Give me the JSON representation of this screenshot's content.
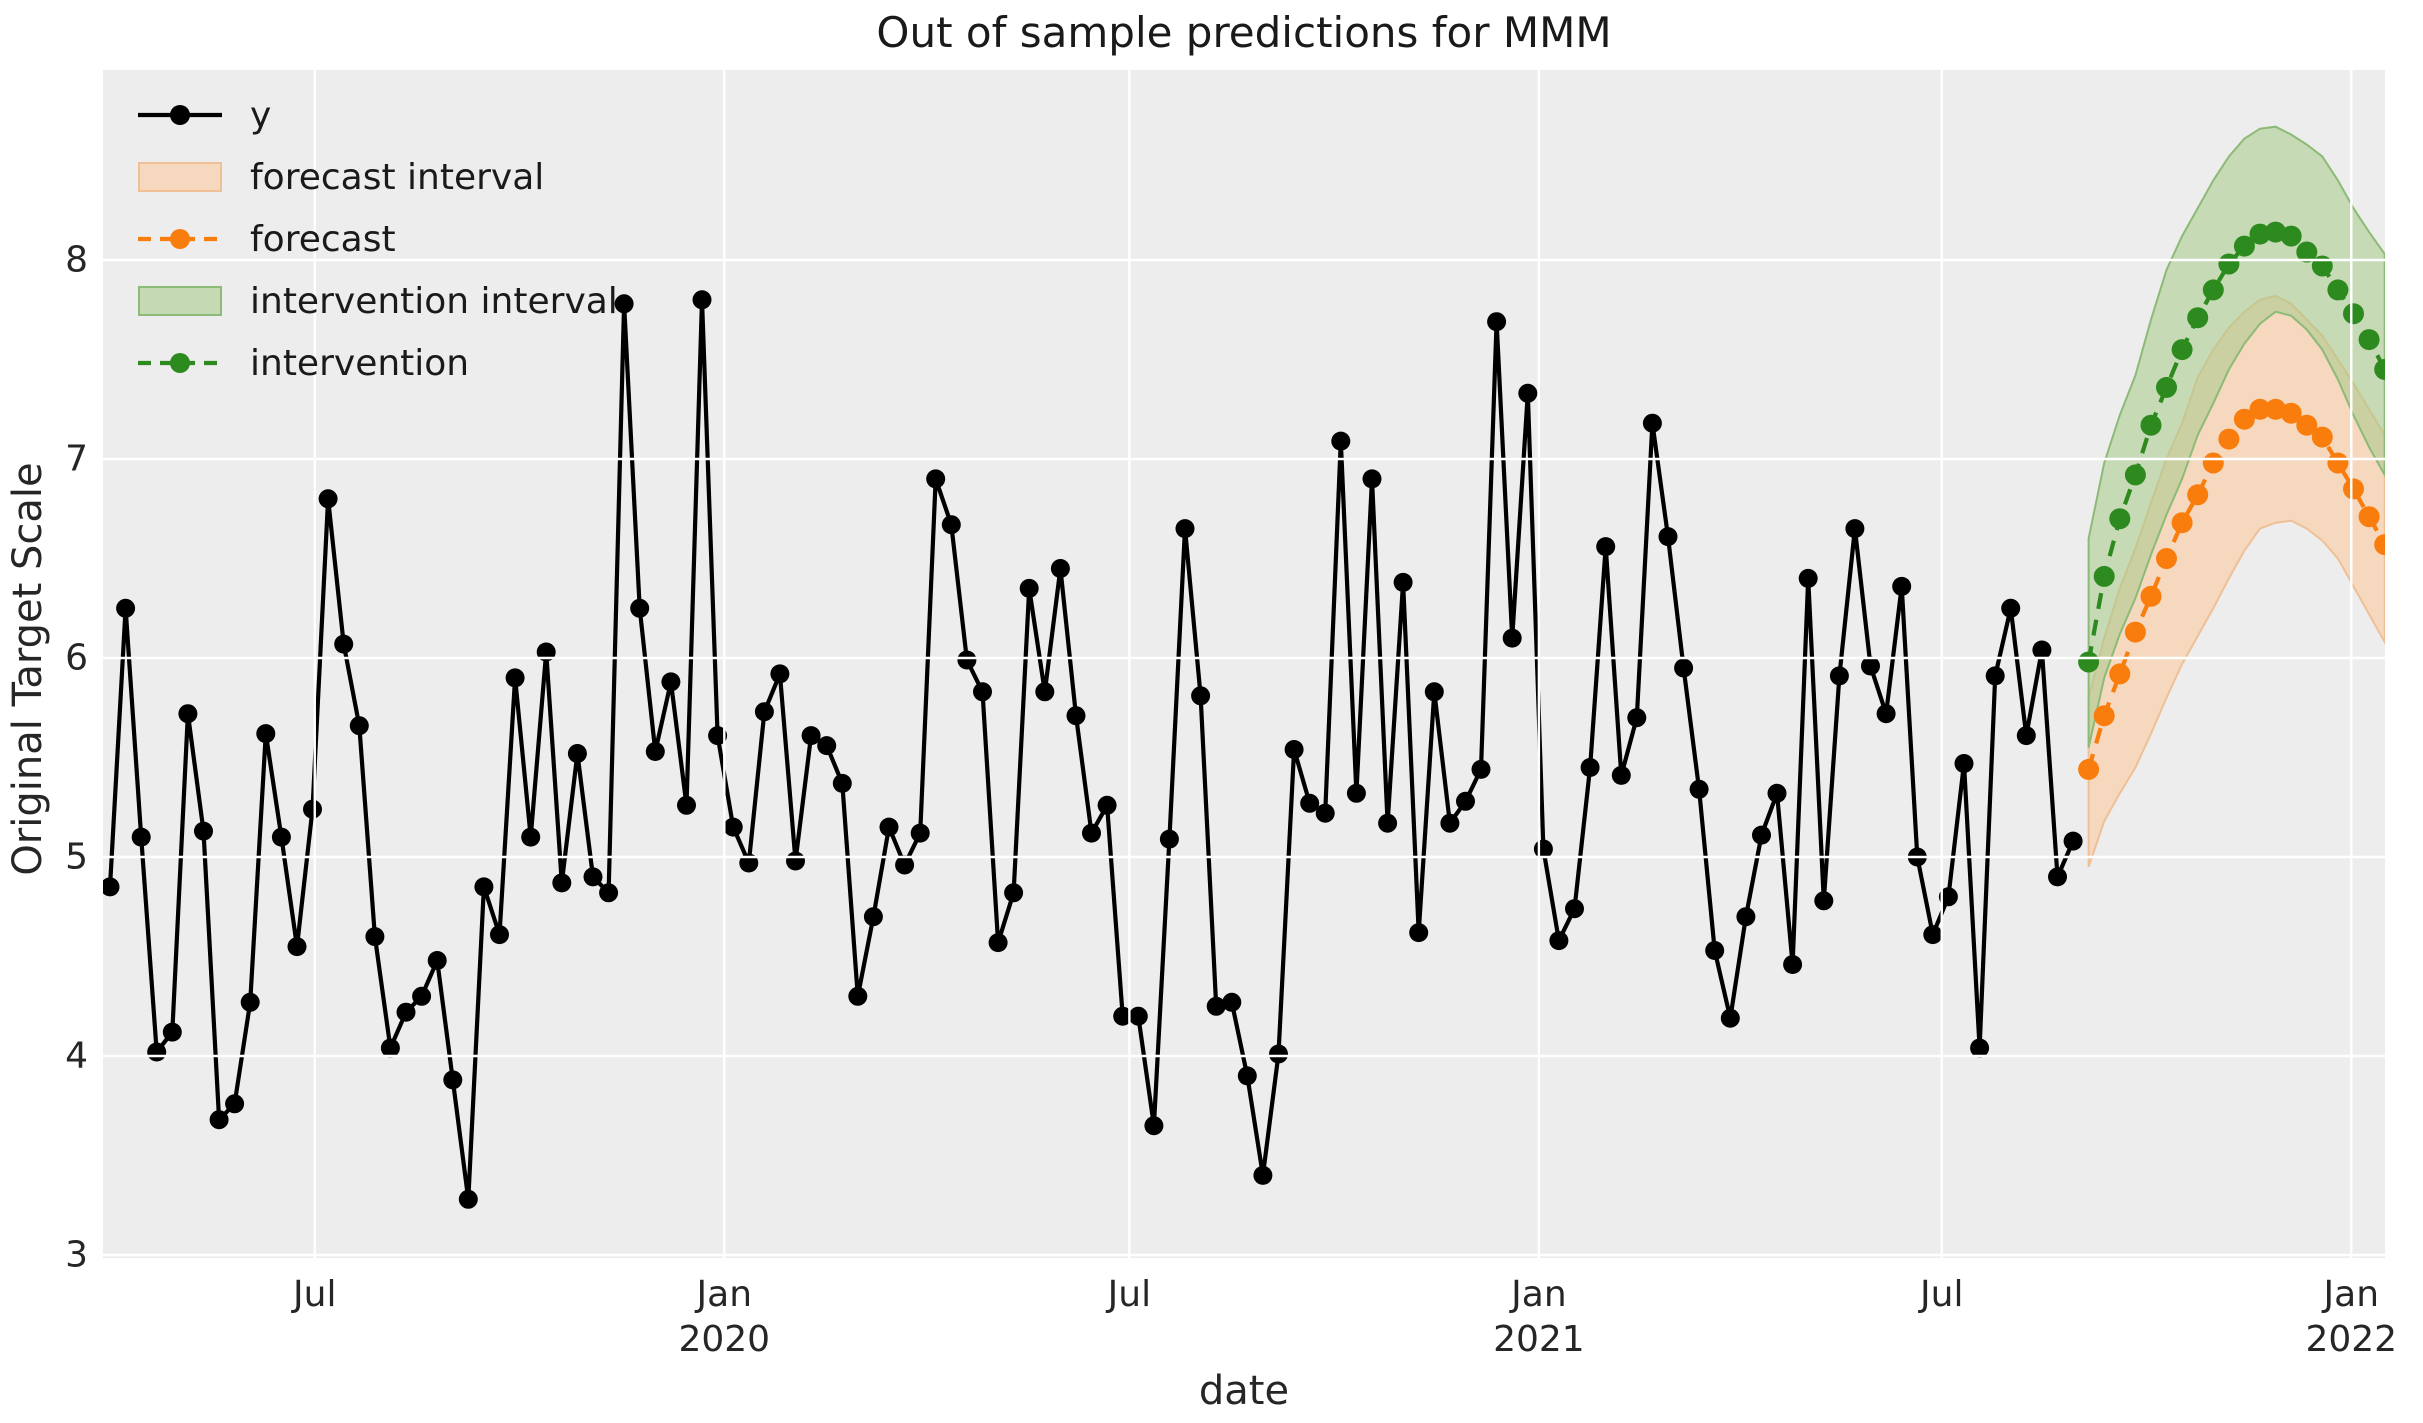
{
  "title": "Out of sample predictions for MMM",
  "axes": {
    "xlabel": "date",
    "ylabel": "Original Target Scale",
    "y_ticks": [
      3,
      4,
      5,
      6,
      7,
      8
    ],
    "x_ticks": [
      {
        "label": "Jul",
        "year": "",
        "date": "2019-07-01"
      },
      {
        "label": "Jan",
        "year": "2020",
        "date": "2020-01-01"
      },
      {
        "label": "Jul",
        "year": "",
        "date": "2020-07-01"
      },
      {
        "label": "Jan",
        "year": "2021",
        "date": "2021-01-01"
      },
      {
        "label": "Jul",
        "year": "",
        "date": "2021-07-01"
      },
      {
        "label": "Jan",
        "year": "2022",
        "date": "2022-01-01"
      }
    ]
  },
  "colors": {
    "y_series": "#000000",
    "forecast": "#f97d0d",
    "forecast_fill": "#f5d8be",
    "forecast_edge": "#efc096",
    "intervention": "#2d8a1e",
    "intervention_fill": "#a6cb88",
    "intervention_edge": "#8cba77",
    "plot_bg": "#ededed",
    "grid": "#ffffff",
    "text": "#262626"
  },
  "legend": [
    {
      "label": "y",
      "type": "line-dot",
      "color": "#000000"
    },
    {
      "label": "forecast interval",
      "type": "patch",
      "color": "#f5d8be",
      "edge": "#efc096"
    },
    {
      "label": "forecast",
      "type": "dash-dot",
      "color": "#f97d0d"
    },
    {
      "label": "intervention interval",
      "type": "patch",
      "color": "#c5d9b5",
      "edge": "#8cba77"
    },
    {
      "label": "intervention",
      "type": "dash-dot",
      "color": "#2d8a1e"
    }
  ],
  "chart_data": {
    "type": "line",
    "title": "Out of sample predictions for MMM",
    "xlabel": "date",
    "ylabel": "Original Target Scale",
    "ylim": [
      2.98,
      8.95
    ],
    "grid": true,
    "legend_position": "upper left",
    "frequency": "weekly",
    "series": [
      {
        "name": "y",
        "style": "solid line with circle markers",
        "start_date": "2019-03-31",
        "values": [
          4.85,
          6.25,
          5.1,
          4.02,
          4.12,
          5.72,
          5.13,
          3.68,
          3.76,
          4.27,
          5.62,
          5.1,
          4.55,
          5.24,
          6.8,
          6.07,
          5.66,
          4.6,
          4.04,
          4.22,
          4.3,
          4.48,
          3.88,
          3.28,
          4.85,
          4.61,
          5.9,
          5.1,
          6.03,
          4.87,
          5.52,
          4.9,
          4.82,
          7.78,
          6.25,
          5.53,
          5.88,
          5.26,
          7.8,
          5.61,
          5.15,
          4.97,
          5.73,
          5.92,
          4.98,
          5.61,
          5.56,
          5.37,
          4.3,
          4.7,
          5.15,
          4.96,
          5.12,
          6.9,
          6.67,
          5.99,
          5.83,
          4.57,
          4.82,
          6.35,
          5.83,
          6.45,
          5.71,
          5.12,
          5.26,
          4.2,
          4.2,
          3.65,
          5.09,
          6.65,
          5.81,
          4.25,
          4.27,
          3.9,
          3.4,
          4.01,
          5.54,
          5.27,
          5.22,
          7.09,
          5.32,
          6.9,
          5.17,
          6.38,
          4.62,
          5.83,
          5.17,
          5.28,
          5.44,
          7.69,
          6.1,
          7.33,
          5.04,
          4.58,
          4.74,
          5.45,
          6.56,
          5.41,
          5.7,
          7.18,
          6.61,
          5.95,
          5.34,
          4.53,
          4.19,
          4.7,
          5.11,
          5.32,
          4.46,
          6.4,
          4.78,
          5.91,
          6.65,
          5.96,
          5.72,
          6.36,
          5.0,
          4.61,
          4.8,
          5.47,
          4.04,
          5.91,
          6.25,
          5.61,
          6.04,
          4.9,
          5.08
        ]
      },
      {
        "name": "forecast",
        "style": "dashed line with circle markers",
        "start_date": "2021-09-05",
        "values": [
          5.44,
          5.71,
          5.92,
          6.13,
          6.31,
          6.5,
          6.68,
          6.82,
          6.98,
          7.1,
          7.2,
          7.25,
          7.25,
          7.23,
          7.17,
          7.11,
          6.98,
          6.85,
          6.71,
          6.57
        ]
      },
      {
        "name": "forecast interval",
        "style": "filled band",
        "start_date": "2021-09-05",
        "upper": [
          5.8,
          6.1,
          6.35,
          6.55,
          6.78,
          7.0,
          7.18,
          7.41,
          7.55,
          7.66,
          7.74,
          7.8,
          7.82,
          7.78,
          7.7,
          7.62,
          7.5,
          7.38,
          7.25,
          7.12
        ],
        "lower": [
          4.95,
          5.18,
          5.32,
          5.45,
          5.62,
          5.8,
          5.97,
          6.11,
          6.25,
          6.4,
          6.54,
          6.65,
          6.68,
          6.69,
          6.65,
          6.59,
          6.5,
          6.36,
          6.22,
          6.08
        ]
      },
      {
        "name": "intervention",
        "style": "dashed line with circle markers",
        "start_date": "2021-09-05",
        "values": [
          5.98,
          6.41,
          6.7,
          6.92,
          7.17,
          7.36,
          7.55,
          7.71,
          7.85,
          7.98,
          8.07,
          8.13,
          8.14,
          8.12,
          8.04,
          7.97,
          7.85,
          7.73,
          7.6,
          7.45
        ]
      },
      {
        "name": "intervention interval",
        "style": "filled band",
        "start_date": "2021-09-05",
        "upper": [
          6.6,
          6.98,
          7.22,
          7.42,
          7.7,
          7.95,
          8.12,
          8.26,
          8.4,
          8.52,
          8.61,
          8.66,
          8.67,
          8.63,
          8.58,
          8.52,
          8.4,
          8.26,
          8.14,
          8.03
        ],
        "lower": [
          5.55,
          5.9,
          6.12,
          6.3,
          6.52,
          6.72,
          6.9,
          7.12,
          7.28,
          7.45,
          7.58,
          7.68,
          7.74,
          7.72,
          7.65,
          7.55,
          7.4,
          7.22,
          7.06,
          6.92
        ]
      }
    ]
  }
}
